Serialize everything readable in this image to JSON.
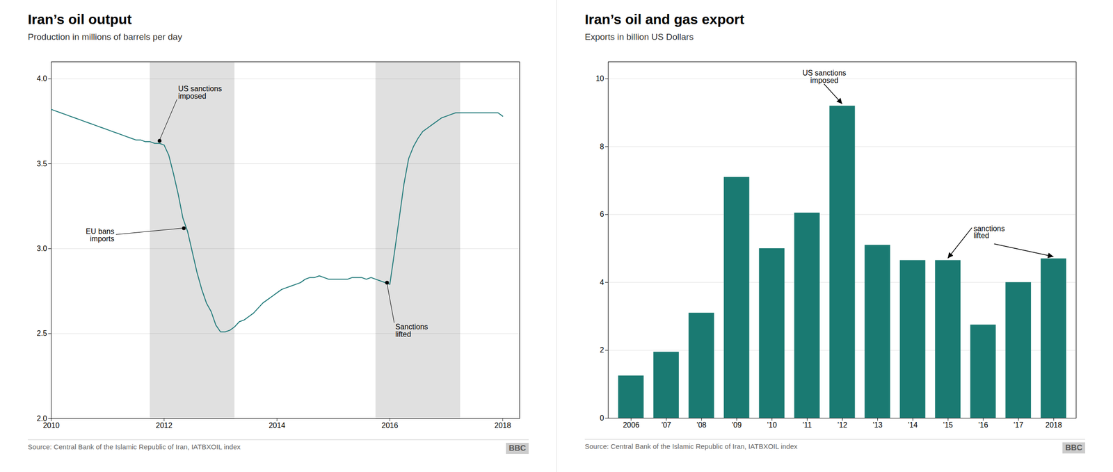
{
  "chart_data": [
    {
      "type": "line",
      "title": "Iran’s oil output",
      "subtitle": "Production in millions of barrels per day",
      "source": "Source: Central Bank of the Islamic Republic of Iran, IATBXOIL index",
      "credit": "BBC",
      "color": "#217a7a",
      "x": [
        2010.0,
        2010.083,
        2010.167,
        2010.25,
        2010.333,
        2010.417,
        2010.5,
        2010.583,
        2010.667,
        2010.75,
        2010.833,
        2010.917,
        2011.0,
        2011.083,
        2011.167,
        2011.25,
        2011.333,
        2011.417,
        2011.5,
        2011.583,
        2011.667,
        2011.75,
        2011.833,
        2011.917,
        2012.0,
        2012.083,
        2012.167,
        2012.25,
        2012.333,
        2012.417,
        2012.5,
        2012.583,
        2012.667,
        2012.75,
        2012.833,
        2012.917,
        2013.0,
        2013.083,
        2013.167,
        2013.25,
        2013.333,
        2013.417,
        2013.5,
        2013.583,
        2013.667,
        2013.75,
        2013.833,
        2013.917,
        2014.0,
        2014.083,
        2014.167,
        2014.25,
        2014.333,
        2014.417,
        2014.5,
        2014.583,
        2014.667,
        2014.75,
        2014.833,
        2014.917,
        2015.0,
        2015.083,
        2015.167,
        2015.25,
        2015.333,
        2015.417,
        2015.5,
        2015.583,
        2015.667,
        2015.75,
        2015.833,
        2015.917,
        2016.0,
        2016.083,
        2016.167,
        2016.25,
        2016.333,
        2016.417,
        2016.5,
        2016.583,
        2016.667,
        2016.75,
        2016.833,
        2016.917,
        2017.0,
        2017.083,
        2017.167,
        2017.25,
        2017.333,
        2017.417,
        2017.5,
        2017.583,
        2017.667,
        2017.75,
        2017.833,
        2017.917,
        2018.0
      ],
      "values": [
        3.82,
        3.81,
        3.8,
        3.79,
        3.78,
        3.77,
        3.76,
        3.75,
        3.74,
        3.73,
        3.72,
        3.71,
        3.7,
        3.69,
        3.68,
        3.67,
        3.66,
        3.65,
        3.64,
        3.64,
        3.63,
        3.63,
        3.62,
        3.62,
        3.61,
        3.55,
        3.44,
        3.32,
        3.18,
        3.1,
        2.98,
        2.86,
        2.76,
        2.68,
        2.63,
        2.55,
        2.51,
        2.51,
        2.52,
        2.54,
        2.57,
        2.58,
        2.6,
        2.62,
        2.65,
        2.68,
        2.7,
        2.72,
        2.74,
        2.76,
        2.77,
        2.78,
        2.79,
        2.8,
        2.82,
        2.83,
        2.83,
        2.84,
        2.83,
        2.82,
        2.82,
        2.82,
        2.82,
        2.82,
        2.83,
        2.83,
        2.83,
        2.82,
        2.83,
        2.82,
        2.81,
        2.8,
        2.79,
        2.98,
        3.18,
        3.38,
        3.53,
        3.6,
        3.65,
        3.69,
        3.71,
        3.73,
        3.75,
        3.77,
        3.78,
        3.79,
        3.8,
        3.8,
        3.8,
        3.8,
        3.8,
        3.8,
        3.8,
        3.8,
        3.8,
        3.8,
        3.78
      ],
      "xlim": [
        2010,
        2018.3
      ],
      "xticks": [
        2010,
        2012,
        2014,
        2016,
        2018
      ],
      "ylim": [
        2.0,
        4.1
      ],
      "yticks": [
        {
          "value": 2.0,
          "label": "2.0"
        },
        2.5,
        {
          "value": 3.0,
          "label": "3.0"
        },
        3.5,
        {
          "value": 4.0,
          "label": "4.0"
        }
      ],
      "grid": true,
      "shaded_regions": [
        {
          "start": 2011.75,
          "end": 2013.25,
          "color": "#e0e0e0"
        },
        {
          "start": 2015.75,
          "end": 2017.25,
          "color": "#e0e0e0"
        }
      ],
      "annotations": [
        {
          "text": "US sanctions\nimposed",
          "x": 2011.92,
          "y": 3.635
        },
        {
          "text": "EU bans\nimports",
          "x": 2012.35,
          "y": 3.12
        },
        {
          "text": "Sanctions\nlifted",
          "x": 2015.95,
          "y": 2.8
        }
      ]
    },
    {
      "type": "bar",
      "title": "Iran’s oil and gas export",
      "subtitle": "Exports in billion US Dollars",
      "source": "Source: Central Bank of the Islamic Republic of Iran, IATBXOIL index",
      "credit": "BBC",
      "color": "#1a7a72",
      "categories": [
        "2006",
        "'07",
        "'08",
        "'09",
        "'10",
        "'11",
        "'12",
        "'13",
        "'14",
        "'15",
        "'16",
        "'17",
        "2018"
      ],
      "values": [
        1.25,
        1.95,
        3.1,
        7.1,
        5.0,
        6.05,
        9.2,
        5.1,
        4.65,
        4.65,
        2.75,
        4.0,
        4.7
      ],
      "ylim": [
        0,
        10.5
      ],
      "yticks": [
        0,
        2,
        4,
        6,
        8,
        10
      ],
      "grid": true,
      "annotations": [
        {
          "text": "US sanctions\nimposed",
          "targets": [
            {
              "category": "'12",
              "y": 9.2
            }
          ]
        },
        {
          "text": "sanctions\nlifted",
          "targets": [
            {
              "category": "'15",
              "y": 4.65
            },
            {
              "category": "2018",
              "y": 4.7
            }
          ]
        }
      ]
    }
  ]
}
